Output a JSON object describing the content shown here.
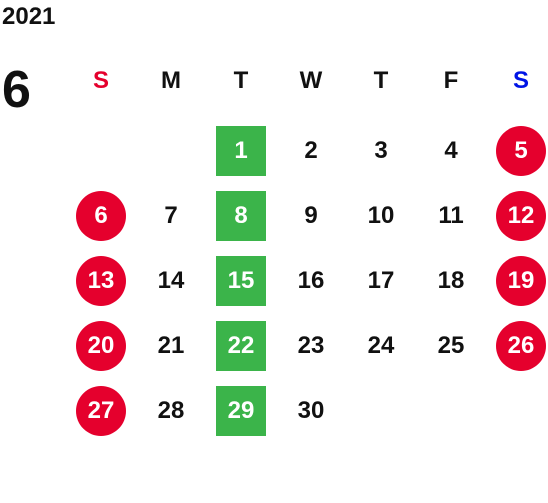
{
  "calendar": {
    "year": "2021",
    "month": "6",
    "weekdays": [
      {
        "label": "S",
        "color": "#e5002d"
      },
      {
        "label": "M",
        "color": "#111111"
      },
      {
        "label": "T",
        "color": "#111111"
      },
      {
        "label": "W",
        "color": "#111111"
      },
      {
        "label": "T",
        "color": "#111111"
      },
      {
        "label": "F",
        "color": "#111111"
      },
      {
        "label": "S",
        "color": "#0014e6"
      }
    ],
    "weeks": [
      [
        "",
        "",
        "1",
        "2",
        "3",
        "4",
        "5"
      ],
      [
        "6",
        "7",
        "8",
        "9",
        "10",
        "11",
        "12"
      ],
      [
        "13",
        "14",
        "15",
        "16",
        "17",
        "18",
        "19"
      ],
      [
        "20",
        "21",
        "22",
        "23",
        "24",
        "25",
        "26"
      ],
      [
        "27",
        "28",
        "29",
        "30",
        "",
        "",
        ""
      ]
    ],
    "colors": {
      "weekend_circle": "#e5002d",
      "tuesday_highlight": "#3bb44a",
      "weekday_text": "#111111"
    }
  }
}
